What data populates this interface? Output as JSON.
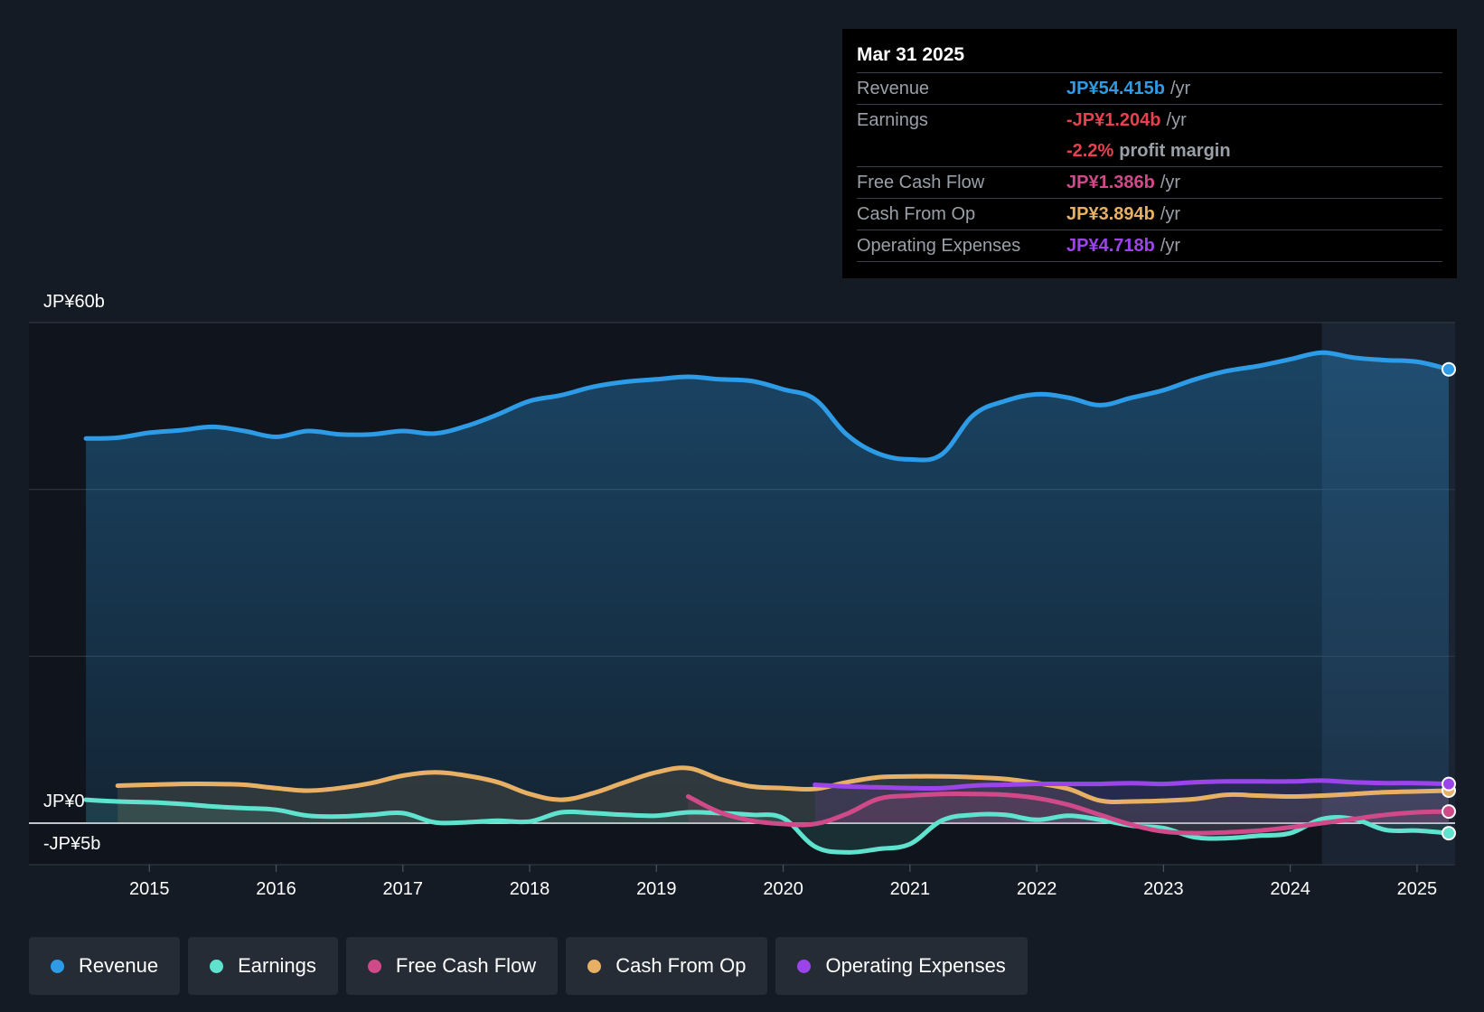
{
  "colors": {
    "revenue": "#2d9be6",
    "earnings": "#5fe3cf",
    "fcf": "#d04a8a",
    "cfo": "#e8b064",
    "opex": "#9b44ea",
    "background": "#151b24",
    "future_band": "#1a2432"
  },
  "tooltip": {
    "date": "Mar 31 2025",
    "rows": [
      {
        "label": "Revenue",
        "value": "JP¥54.415b",
        "unit": "/yr"
      },
      {
        "label": "Earnings",
        "value": "-JP¥1.204b",
        "unit": "/yr"
      },
      {
        "label": "",
        "value": "-2.2%",
        "unit": "profit margin"
      },
      {
        "label": "Free Cash Flow",
        "value": "JP¥1.386b",
        "unit": "/yr"
      },
      {
        "label": "Cash From Op",
        "value": "JP¥3.894b",
        "unit": "/yr"
      },
      {
        "label": "Operating Expenses",
        "value": "JP¥4.718b",
        "unit": "/yr"
      }
    ]
  },
  "legend": [
    {
      "label": "Revenue",
      "color": "#2d9be6"
    },
    {
      "label": "Earnings",
      "color": "#5fe3cf"
    },
    {
      "label": "Free Cash Flow",
      "color": "#d04a8a"
    },
    {
      "label": "Cash From Op",
      "color": "#e8b064"
    },
    {
      "label": "Operating Expenses",
      "color": "#9b44ea"
    }
  ],
  "chart_data": {
    "type": "area",
    "title": "",
    "y_labels": {
      "top": "JP¥60b",
      "zero": "JP¥0",
      "bottom": "-JP¥5b"
    },
    "ylim": [
      -5,
      60
    ],
    "xlim": [
      2014.05,
      2025.3
    ],
    "gridlines": [
      0,
      20,
      40,
      60
    ],
    "x_ticks": [
      2015,
      2016,
      2017,
      2018,
      2019,
      2020,
      2021,
      2022,
      2023,
      2024,
      2025
    ],
    "highlight_from": 2024.25,
    "series": [
      {
        "name": "Revenue",
        "key": "revenue",
        "fill": true,
        "x": [
          2014.5,
          2014.75,
          2015.0,
          2015.25,
          2015.5,
          2015.75,
          2016.0,
          2016.25,
          2016.5,
          2016.75,
          2017.0,
          2017.25,
          2017.5,
          2017.75,
          2018.0,
          2018.25,
          2018.5,
          2018.75,
          2019.0,
          2019.25,
          2019.5,
          2019.75,
          2020.0,
          2020.25,
          2020.5,
          2020.75,
          2021.0,
          2021.25,
          2021.5,
          2021.75,
          2022.0,
          2022.25,
          2022.5,
          2022.75,
          2023.0,
          2023.25,
          2023.5,
          2023.75,
          2024.0,
          2024.25,
          2024.5,
          2024.75,
          2025.0,
          2025.25
        ],
        "values": [
          46.1,
          46.2,
          46.8,
          47.1,
          47.5,
          47.0,
          46.3,
          47.0,
          46.6,
          46.6,
          47.0,
          46.7,
          47.6,
          49.0,
          50.6,
          51.3,
          52.3,
          52.9,
          53.2,
          53.5,
          53.2,
          53.0,
          52.0,
          50.8,
          46.6,
          44.3,
          43.6,
          44.2,
          48.9,
          50.6,
          51.4,
          51.0,
          50.1,
          51.0,
          51.9,
          53.2,
          54.2,
          54.8,
          55.6,
          56.4,
          55.8,
          55.5,
          55.3,
          54.4
        ]
      },
      {
        "name": "Earnings",
        "key": "earnings",
        "fill": true,
        "x": [
          2014.5,
          2014.75,
          2015.0,
          2015.25,
          2015.5,
          2015.75,
          2016.0,
          2016.25,
          2016.5,
          2016.75,
          2017.0,
          2017.25,
          2017.5,
          2017.75,
          2018.0,
          2018.25,
          2018.5,
          2018.75,
          2019.0,
          2019.25,
          2019.5,
          2019.75,
          2020.0,
          2020.25,
          2020.5,
          2020.75,
          2021.0,
          2021.25,
          2021.5,
          2021.75,
          2022.0,
          2022.25,
          2022.5,
          2022.75,
          2023.0,
          2023.25,
          2023.5,
          2023.75,
          2024.0,
          2024.25,
          2024.5,
          2024.75,
          2025.0,
          2025.25
        ],
        "values": [
          2.8,
          2.6,
          2.5,
          2.3,
          2.0,
          1.8,
          1.6,
          0.9,
          0.8,
          1.0,
          1.2,
          0.1,
          0.1,
          0.3,
          0.2,
          1.3,
          1.2,
          1.0,
          0.9,
          1.3,
          1.2,
          1.0,
          0.6,
          -2.8,
          -3.5,
          -3.1,
          -2.5,
          0.3,
          1.0,
          1.0,
          0.4,
          0.9,
          0.4,
          -0.3,
          -0.6,
          -1.7,
          -1.8,
          -1.5,
          -1.2,
          0.5,
          0.5,
          -0.8,
          -0.9,
          -1.2
        ]
      },
      {
        "name": "Free Cash Flow",
        "key": "fcf",
        "fill": true,
        "x": [
          2019.25,
          2019.5,
          2019.75,
          2020.0,
          2020.25,
          2020.5,
          2020.75,
          2021.0,
          2021.25,
          2021.5,
          2021.75,
          2022.0,
          2022.25,
          2022.5,
          2022.75,
          2023.0,
          2023.25,
          2023.5,
          2023.75,
          2024.0,
          2024.25,
          2024.5,
          2024.75,
          2025.0,
          2025.25
        ],
        "values": [
          3.2,
          1.3,
          0.3,
          -0.1,
          -0.1,
          1.1,
          2.9,
          3.3,
          3.5,
          3.5,
          3.4,
          3.0,
          2.2,
          1.0,
          -0.2,
          -1.0,
          -1.2,
          -1.1,
          -0.9,
          -0.5,
          0.0,
          0.5,
          1.0,
          1.3,
          1.4
        ]
      },
      {
        "name": "Cash From Op",
        "key": "cfo",
        "fill": true,
        "x": [
          2014.75,
          2015.0,
          2015.25,
          2015.5,
          2015.75,
          2016.0,
          2016.25,
          2016.5,
          2016.75,
          2017.0,
          2017.25,
          2017.5,
          2017.75,
          2018.0,
          2018.25,
          2018.5,
          2018.75,
          2019.0,
          2019.25,
          2019.5,
          2019.75,
          2020.0,
          2020.25,
          2020.5,
          2020.75,
          2021.0,
          2021.25,
          2021.5,
          2021.75,
          2022.0,
          2022.25,
          2022.5,
          2022.75,
          2023.0,
          2023.25,
          2023.5,
          2023.75,
          2024.0,
          2024.25,
          2024.5,
          2024.75,
          2025.0,
          2025.25
        ],
        "values": [
          4.5,
          4.6,
          4.7,
          4.7,
          4.6,
          4.2,
          3.9,
          4.2,
          4.8,
          5.7,
          6.1,
          5.7,
          4.9,
          3.5,
          2.8,
          3.6,
          4.9,
          6.1,
          6.6,
          5.3,
          4.4,
          4.2,
          4.1,
          4.9,
          5.5,
          5.6,
          5.6,
          5.5,
          5.3,
          4.8,
          4.1,
          2.7,
          2.6,
          2.7,
          2.9,
          3.4,
          3.3,
          3.2,
          3.3,
          3.5,
          3.7,
          3.8,
          3.9
        ]
      },
      {
        "name": "Operating Expenses",
        "key": "opex",
        "fill": true,
        "x": [
          2020.25,
          2020.5,
          2020.75,
          2021.0,
          2021.25,
          2021.5,
          2021.75,
          2022.0,
          2022.25,
          2022.5,
          2022.75,
          2023.0,
          2023.25,
          2023.5,
          2023.75,
          2024.0,
          2024.25,
          2024.5,
          2024.75,
          2025.0,
          2025.25
        ],
        "values": [
          4.6,
          4.4,
          4.3,
          4.2,
          4.2,
          4.5,
          4.6,
          4.7,
          4.7,
          4.7,
          4.8,
          4.7,
          4.9,
          5.0,
          5.0,
          5.0,
          5.1,
          4.9,
          4.8,
          4.8,
          4.7
        ]
      }
    ]
  }
}
